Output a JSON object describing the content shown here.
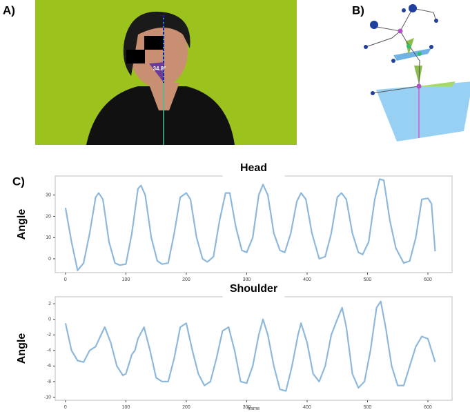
{
  "panel_labels": [
    "A)",
    "B)",
    "C)"
  ],
  "photo_annotation": "34.8°",
  "chart_data": [
    {
      "type": "line",
      "title": "Head",
      "y_label": "Angle",
      "color": "#8db8dc",
      "x": [
        0,
        10,
        20,
        30,
        40,
        50,
        55,
        62,
        72,
        82,
        90,
        100,
        110,
        120,
        125,
        132,
        142,
        152,
        160,
        170,
        180,
        190,
        200,
        207,
        217,
        227,
        235,
        245,
        255,
        265,
        272,
        282,
        292,
        300,
        310,
        320,
        327,
        335,
        345,
        355,
        363,
        373,
        383,
        390,
        398,
        408,
        420,
        430,
        440,
        450,
        457,
        465,
        475,
        485,
        492,
        502,
        512,
        520,
        527,
        537,
        547,
        560,
        570,
        580,
        590,
        600,
        606,
        612
      ],
      "values": [
        24,
        8,
        -5.5,
        -2,
        12,
        29,
        31,
        28,
        8,
        -2,
        -3,
        -2.5,
        12,
        33,
        34.5,
        30,
        10,
        -1,
        -2.5,
        -2,
        12,
        29,
        31,
        28,
        10,
        0,
        -1.5,
        1,
        18,
        31,
        31,
        15,
        4,
        3,
        10,
        30,
        35,
        30,
        12,
        4,
        3,
        12,
        27,
        31,
        28,
        12,
        0,
        1,
        12,
        29,
        31,
        28,
        12,
        3,
        2,
        8,
        28,
        37.5,
        37,
        18,
        5,
        -2,
        -1,
        10,
        28,
        28.5,
        26,
        3.5
      ],
      "xlim": [
        -17,
        640
      ],
      "xticks": [
        0,
        100,
        200,
        300,
        400,
        500,
        600
      ],
      "ylim": [
        -6.5,
        39
      ],
      "yticks": [
        0,
        10,
        20,
        30
      ]
    },
    {
      "type": "line",
      "title": "Shoulder",
      "y_label": "Angle",
      "x_label": "frame",
      "color": "#8db8dc",
      "x": [
        0,
        10,
        20,
        30,
        40,
        50,
        60,
        65,
        75,
        85,
        95,
        100,
        110,
        115,
        120,
        130,
        140,
        150,
        160,
        170,
        180,
        190,
        200,
        210,
        220,
        230,
        240,
        250,
        260,
        270,
        280,
        290,
        300,
        310,
        320,
        327,
        335,
        345,
        355,
        365,
        375,
        385,
        390,
        400,
        410,
        420,
        430,
        440,
        450,
        458,
        465,
        475,
        485,
        495,
        505,
        515,
        522,
        530,
        540,
        550,
        560,
        570,
        580,
        590,
        600,
        612
      ],
      "values": [
        -0.5,
        -4,
        -5.3,
        -5.5,
        -4,
        -3.5,
        -1.8,
        -1,
        -3,
        -6,
        -7.2,
        -7,
        -4.5,
        -4,
        -2.5,
        -1,
        -4,
        -7.5,
        -8,
        -8,
        -5,
        -1,
        -0.5,
        -4,
        -7,
        -8.5,
        -8,
        -5,
        -1.5,
        -1,
        -4,
        -8,
        -8.2,
        -6,
        -2,
        0,
        -2,
        -6,
        -9,
        -9.2,
        -6,
        -2,
        -0.5,
        -3,
        -7,
        -8,
        -6,
        -2,
        0,
        1.5,
        -1,
        -7,
        -8.8,
        -8,
        -4,
        1.5,
        2.3,
        -1,
        -6,
        -8.5,
        -8.5,
        -6,
        -3.5,
        -2.2,
        -2.5,
        -5.5
      ],
      "xlim": [
        -17,
        640
      ],
      "xticks": [
        0,
        100,
        200,
        300,
        400,
        500,
        600
      ],
      "ylim": [
        -10.4,
        2.9
      ],
      "yticks": [
        -10,
        -8,
        -6,
        -4,
        -2,
        0,
        2
      ]
    }
  ]
}
